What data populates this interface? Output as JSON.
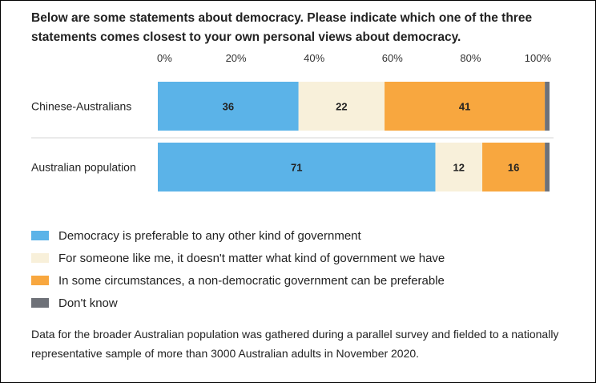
{
  "title": "Below are some statements about democracy. Please indicate which one of the three statements comes closest to your own personal views about democracy.",
  "chart_data": {
    "type": "bar",
    "orientation": "horizontal",
    "stacked": true,
    "categories": [
      "Chinese-Australians",
      "Australian population"
    ],
    "series": [
      {
        "name": "Democracy is preferable to any other kind of government",
        "values": [
          36,
          71
        ],
        "color": "#5bb3e8"
      },
      {
        "name": "For someone like me, it doesn't matter what kind of government we have",
        "values": [
          22,
          12
        ],
        "color": "#f8f0da"
      },
      {
        "name": "In some circumstances, a non-democratic government can be preferable",
        "values": [
          41,
          16
        ],
        "color": "#f8a73f"
      },
      {
        "name": "Don't know",
        "values": [
          1.2,
          1.2
        ],
        "color": "#6e7178"
      }
    ],
    "xlim": [
      0,
      100
    ],
    "xticks": [
      "0%",
      "20%",
      "40%",
      "60%",
      "80%",
      "100%"
    ],
    "data_labels": [
      [
        "36",
        "22",
        "41",
        ""
      ],
      [
        "71",
        "12",
        "16",
        ""
      ]
    ],
    "legend": [
      "Democracy is preferable to any other kind of government",
      "For someone like me, it doesn't matter what kind of government we have",
      "In some circumstances, a non-democratic government can be preferable",
      "Don't know"
    ]
  },
  "note": "Data for the broader Australian population was gathered during a parallel survey and fielded to a nationally representative sample of more than 3000 Australian adults in November 2020."
}
